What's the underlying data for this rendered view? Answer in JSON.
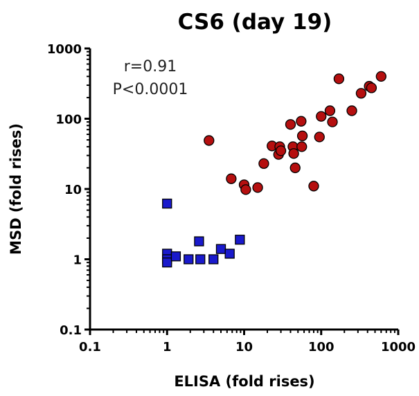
{
  "chart_data": {
    "type": "scatter",
    "title": "CS6 (day 19)",
    "xlabel": "ELISA (fold rises)",
    "ylabel": "MSD (fold rises)",
    "xscale": "log",
    "yscale": "log",
    "xlim": [
      0.1,
      1000
    ],
    "ylim": [
      0.1,
      1000
    ],
    "x_ticks": [
      "0.1",
      "1",
      "10",
      "100",
      "1000"
    ],
    "y_ticks": [
      "0.1",
      "1",
      "10",
      "100",
      "1000"
    ],
    "grid": false,
    "annotations": [
      "r=0.91",
      "P<0.0001"
    ],
    "series": [
      {
        "marker": "square",
        "color": "#1a1acc",
        "points": [
          [
            1.0,
            6.2
          ],
          [
            1.0,
            1.2
          ],
          [
            1.0,
            1.0
          ],
          [
            1.0,
            0.9
          ],
          [
            1.3,
            1.1
          ],
          [
            1.9,
            1.0
          ],
          [
            2.6,
            1.8
          ],
          [
            2.7,
            1.0
          ],
          [
            4.0,
            1.0
          ],
          [
            5.0,
            1.4
          ],
          [
            6.5,
            1.2
          ],
          [
            8.8,
            1.9
          ]
        ]
      },
      {
        "marker": "circle",
        "color": "#b50f0f",
        "points": [
          [
            3.5,
            49
          ],
          [
            6.8,
            14
          ],
          [
            10,
            11.5
          ],
          [
            10.5,
            9.8
          ],
          [
            15,
            10.5
          ],
          [
            18,
            23
          ],
          [
            23,
            41
          ],
          [
            28,
            31
          ],
          [
            29,
            40
          ],
          [
            30,
            35
          ],
          [
            40,
            83
          ],
          [
            43,
            40
          ],
          [
            44,
            32
          ],
          [
            46,
            20
          ],
          [
            55,
            92
          ],
          [
            56,
            40
          ],
          [
            57,
            57
          ],
          [
            80,
            11
          ],
          [
            95,
            55
          ],
          [
            100,
            108
          ],
          [
            130,
            130
          ],
          [
            140,
            90
          ],
          [
            170,
            370
          ],
          [
            250,
            130
          ],
          [
            330,
            230
          ],
          [
            420,
            290
          ],
          [
            450,
            275
          ],
          [
            600,
            400
          ]
        ]
      }
    ]
  }
}
